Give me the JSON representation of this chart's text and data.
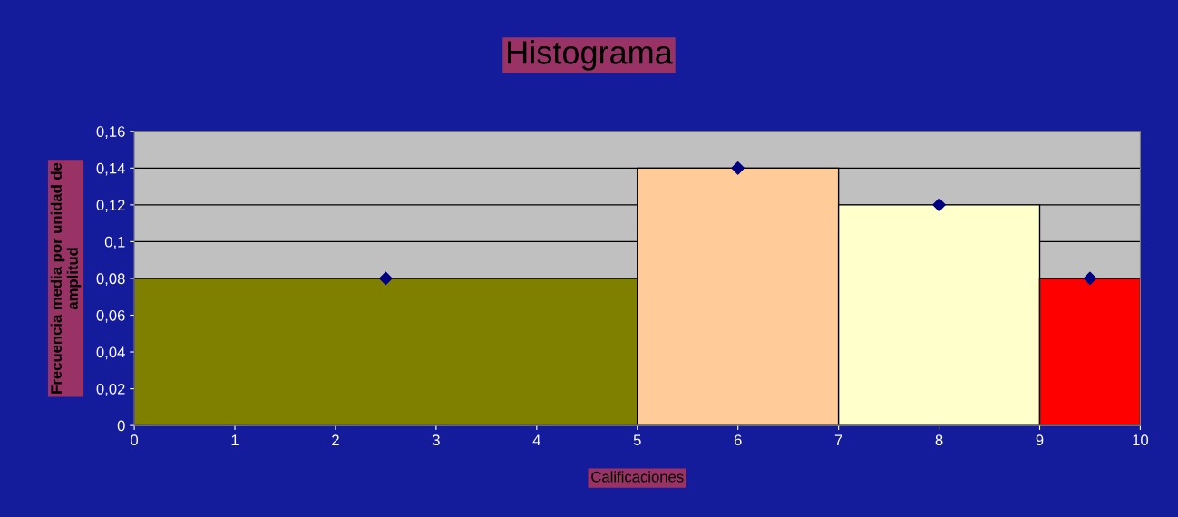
{
  "chart_data": {
    "type": "histogram",
    "title": "Histograma",
    "xlabel": "Calificaciones",
    "ylabel": "Frecuencia media por unidad de\namplitud",
    "bins": [
      0,
      5,
      7,
      9,
      10
    ],
    "values": [
      0.08,
      0.14,
      0.12,
      0.08
    ],
    "colors": [
      "#808000",
      "#ffcc99",
      "#ffffcc",
      "#ff0000"
    ],
    "series": [
      {
        "type": "scatter",
        "x": [
          2.5,
          6,
          8,
          9.5
        ],
        "values": [
          0.08,
          0.14,
          0.12,
          0.08
        ],
        "color": "#000080",
        "marker": "diamond"
      }
    ],
    "xlim": [
      0,
      10
    ],
    "xticks": [
      0,
      1,
      2,
      3,
      4,
      5,
      6,
      7,
      8,
      9,
      10
    ],
    "ylim": [
      0,
      0.16
    ],
    "yticks": [
      0,
      {
        "value": 0.02,
        "label": "0,02"
      },
      {
        "value": 0.04,
        "label": "0,04"
      },
      {
        "value": 0.06,
        "label": "0,06"
      },
      {
        "value": 0.08,
        "label": "0,08"
      },
      {
        "value": 0.1,
        "label": "0,1"
      },
      {
        "value": 0.12,
        "label": "0,12"
      },
      {
        "value": 0.14,
        "label": "0,14"
      },
      {
        "value": 0.16,
        "label": "0,16"
      }
    ],
    "grid": "y",
    "legend": false
  }
}
